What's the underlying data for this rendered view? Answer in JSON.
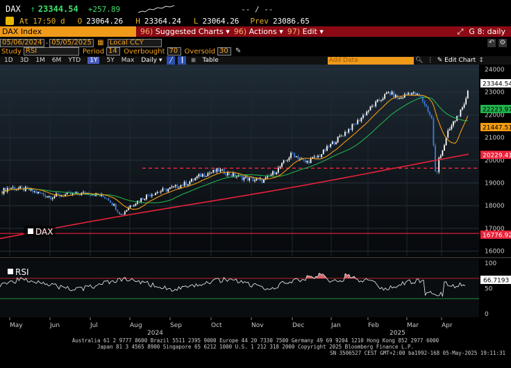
{
  "header": {
    "ticker": "DAX",
    "up_arrow": "↑",
    "last": "23344.54",
    "change": "+257.89",
    "at_label": "At",
    "time": "17:50 d",
    "open_label": "O",
    "open": "23064.26",
    "high_label": "H",
    "high": "23364.24",
    "low_label": "L",
    "low": "23064.26",
    "prev_label": "Prev",
    "prev": "23086.65",
    "blank_readout": "-- / --"
  },
  "menubar": {
    "title": "DAX Index",
    "items": [
      {
        "num": "96)",
        "label": "Suggested Charts ▾"
      },
      {
        "num": "96)",
        "label": "Actions ▾"
      },
      {
        "num": "97)",
        "label": "Edit ▾"
      }
    ],
    "right_label": "G 8: daily"
  },
  "range": {
    "start": "05/06/2024",
    "end": "05/05/2025",
    "currency": "Local CCY"
  },
  "study": {
    "study_label": "Study",
    "study_value": "RSI",
    "period_label": "Period",
    "period_value": "14",
    "overbought_label": "Overbought",
    "overbought_value": "70",
    "oversold_label": "Oversold",
    "oversold_value": "30"
  },
  "toolbar": {
    "periods": [
      "1D",
      "3D",
      "1M",
      "6M",
      "YTD",
      "1Y",
      "5Y",
      "Max"
    ],
    "active_period": "1Y",
    "interval": "Daily ▾",
    "table_label": "Table",
    "add_data_placeholder": "Add Data",
    "edit_chart_label": "Edit Chart"
  },
  "price_axis": {
    "ticks": [
      "24000",
      "23000",
      "22000",
      "21000",
      "20000",
      "19000",
      "18000",
      "17000",
      "16000"
    ],
    "badges": [
      {
        "value": "23344.54",
        "bg": "#ffffff",
        "fg": "#000000"
      },
      {
        "value": "22223.97",
        "bg": "#22b14c",
        "fg": "#000000"
      },
      {
        "value": "21447.51",
        "bg": "#f39c12",
        "fg": "#000000"
      },
      {
        "value": "20229.41",
        "bg": "#e8223a",
        "fg": "#ffffff"
      },
      {
        "value": "16776.92",
        "bg": "#e8223a",
        "fg": "#ffffff"
      }
    ]
  },
  "rsi_axis": {
    "ticks": [
      "100",
      "50",
      "0"
    ],
    "badge": "66.7193"
  },
  "legend": {
    "price": "DAX",
    "rsi": "RSI"
  },
  "x_axis": {
    "months": [
      "May",
      "Jun",
      "Jul",
      "Aug",
      "Sep",
      "Oct",
      "Nov",
      "Dec",
      "Jan",
      "Feb",
      "Mar",
      "Apr"
    ],
    "years": [
      "2024",
      "2025"
    ]
  },
  "colors": {
    "accent_orange": "#f4a21d",
    "menu_red": "#8b0a14",
    "ma_short": "#f39c12",
    "ma_mid": "#22b14c",
    "ma_long": "#e8223a",
    "up_candle": "#ffffff",
    "down_candle": "#3b7ddd"
  },
  "chart_data": {
    "type": "line",
    "series": [
      {
        "name": "DAX",
        "x": [
          "May",
          "Jun",
          "Jul",
          "Aug",
          "Sep",
          "Oct",
          "Nov",
          "Dec",
          "Jan",
          "Feb",
          "Mar",
          "Apr"
        ],
        "values": [
          18700,
          18500,
          18400,
          17600,
          18800,
          19400,
          19200,
          20300,
          20600,
          22500,
          22800,
          21200
        ]
      }
    ],
    "ylim": [
      15600,
      24200
    ],
    "grid": true,
    "reference_lines": [
      19650,
      16776.92
    ]
  },
  "footer": {
    "line1": "Australia 61 2 9777 8600 Brazil 5511 2395 9000 Europe 44 20 7330 7500 Germany 49 69 9204 1210 Hong Kong 852 2977 6000",
    "line2": "Japan 81 3 4565 8900       Singapore 65 6212 1000       U.S. 1 212 318 2000            Copyright 2025 Bloomberg Finance L.P.",
    "line3": "SN 3506527 CEST GMT+2:00 ba1992-168 05-May-2025 19:11:31"
  }
}
